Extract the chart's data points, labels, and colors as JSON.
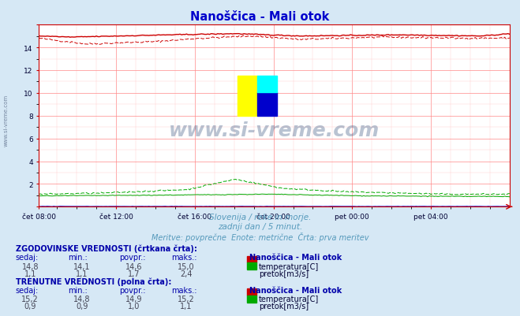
{
  "title": "Nanoščica - Mali otok",
  "title_color": "#0000cc",
  "bg_color": "#d6e8f5",
  "plot_bg_color": "#ffffff",
  "grid_color_major": "#ff9999",
  "grid_color_minor": "#ffcccc",
  "x_tick_labels": [
    "čet 08:00",
    "čet 12:00",
    "čet 16:00",
    "čet 20:00",
    "pet 00:00",
    "pet 04:00"
  ],
  "x_ticks_frac": [
    0.0,
    0.1667,
    0.3333,
    0.5,
    0.6667,
    0.8333
  ],
  "n_points": 288,
  "y_min": 0,
  "y_max": 16,
  "watermark_text": "www.si-vreme.com",
  "subtitle1": "Slovenija / reke in morje.",
  "subtitle2": "zadnji dan / 5 minut.",
  "subtitle3": "Meritve: povprečne  Enote: metrične  Črta: prva meritev",
  "subtitle_color": "#5599bb",
  "temp_color": "#cc0000",
  "flow_color": "#00aa00",
  "height_color": "#0000cc",
  "hist_label1": "ZGODOVINSKE VREDNOSTI (črtkana črta):",
  "curr_label1": "TRENUTNE VREDNOSTI (polna črta):",
  "col_headers": [
    "sedaj:",
    "min.:",
    "povpr.:",
    "maks.:"
  ],
  "station": "Nanoščica - Mali otok",
  "hist_temp": [
    "14,8",
    "14,1",
    "14,6",
    "15,0"
  ],
  "hist_flow": [
    "1,1",
    "1,1",
    "1,7",
    "2,4"
  ],
  "curr_temp": [
    "15,2",
    "14,8",
    "14,9",
    "15,2"
  ],
  "curr_flow": [
    "0,9",
    "0,9",
    "1,0",
    "1,1"
  ],
  "row_labels": [
    "temperatura[C]",
    "pretok[m3/s]"
  ],
  "header_color": "#0000aa",
  "value_color": "#444455",
  "label_color": "#000033"
}
